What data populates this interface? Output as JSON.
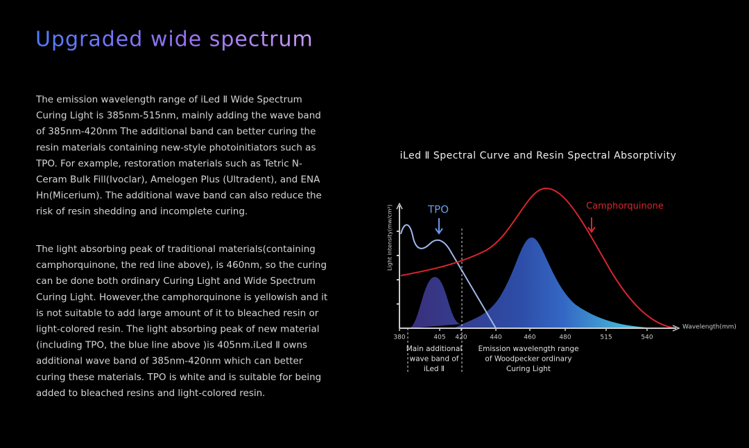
{
  "header": {
    "title": "Upgraded wide spectrum"
  },
  "paragraphs": [
    [
      "The emission wavelength range of iLed Ⅱ  Wide Spectrum",
      "Curing Light is 385nm-515nm, mainly adding the wave band",
      "of 385nm-420nm The additional band can better curing the",
      "resin materials containing new-style photoinitiators such as",
      "TPO. For example, restoration materials such as Tetric N-",
      "Ceram Bulk Fill(Ivoclar), Amelogen Plus (Ultradent), and ENA",
      "Hn(Micerium). The additional wave band can also reduce the",
      "risk of resin shedding and incomplete curing."
    ],
    [
      "The light absorbing peak of traditional materials(containing",
      "camphorquinone, the red line above), is 460nm, so the curing",
      "can be done both ordinary Curing Light and Wide Spectrum",
      "Curing Light. However,the camphorquinone is yellowish and it",
      "is not suitable to add large amount of it to bleached resin or",
      "light-colored resin. The light absorbing peak of new material",
      "(including TPO, the blue line above )is 405nm.iLed Ⅱ owns",
      "additional wave band of 385nm-420nm which can better",
      "curing these materials. TPO is white and is suitable for being",
      "added to bleached resins and light-colored resin."
    ]
  ],
  "diagram": {
    "title": "iLed Ⅱ  Spectral Curve and Resin Spectral Absorptivity",
    "y_label": "Light intensity(mw/cm²)",
    "x_label": "Wavelength(mm)",
    "x_ticks": [
      380,
      405,
      420,
      440,
      460,
      480,
      515,
      540
    ],
    "tpo_label": "TPO",
    "cq_label": "Camphorquinone",
    "note_additional": [
      "Main additional",
      "wave band of",
      "iLed Ⅱ"
    ],
    "note_emission": [
      "Emission wavelength range",
      "of Woodpecker ordinary",
      "Curing Light"
    ]
  }
}
